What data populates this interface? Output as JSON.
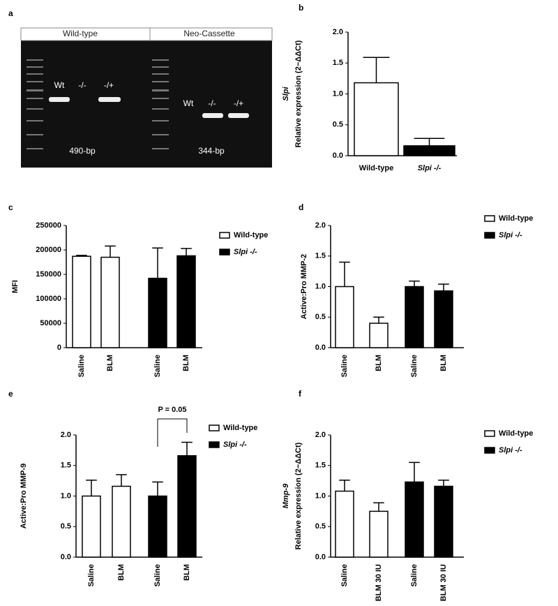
{
  "gel": {
    "panel": "a",
    "headers": [
      "Wild-type",
      "Neo-Cassette"
    ],
    "lanes": [
      [
        "Wt",
        "-/-",
        "-/+"
      ],
      [
        "Wt",
        "-/-",
        "-/+"
      ]
    ],
    "sizes": [
      "490-bp",
      "344-bp"
    ]
  },
  "chart_data": [
    {
      "type": "bar",
      "panel": "b",
      "ylabel_gene": "Slpi",
      "ylabel": "Relative expression (2−ΔΔCt)",
      "categories": [
        "Wild-type",
        "Slpi -/-"
      ],
      "values": [
        1.18,
        0.16
      ],
      "errors": [
        0.41,
        0.12
      ],
      "colors": [
        "#ffffff",
        "#000000"
      ],
      "ylim": [
        0,
        2
      ],
      "yticks": [
        {
          "value": 0,
          "label": "0.0"
        },
        0.5,
        {
          "value": 1,
          "label": "1.0"
        },
        1.5,
        {
          "value": 2,
          "label": "2.0"
        }
      ]
    },
    {
      "type": "grouped_bar",
      "panel": "c",
      "ylabel": "MFI",
      "categories": [
        "Saline",
        "BLM"
      ],
      "series": [
        {
          "name": "Wild-type",
          "color": "#ffffff",
          "values": [
            187000,
            185000
          ],
          "errors": [
            2000,
            23000
          ]
        },
        {
          "name": "Slpi -/-",
          "color": "#000000",
          "values": [
            142000,
            188000
          ],
          "errors": [
            62000,
            15000
          ]
        }
      ],
      "ylim": [
        0,
        250000
      ],
      "yticks": [
        0,
        50000,
        100000,
        150000,
        200000,
        250000
      ]
    },
    {
      "type": "grouped_bar",
      "panel": "d",
      "ylabel": "Active:Pro MMP-2",
      "categories": [
        "Saline",
        "BLM"
      ],
      "series": [
        {
          "name": "Wild-type",
          "color": "#ffffff",
          "values": [
            1.0,
            0.4
          ],
          "errors": [
            0.4,
            0.1
          ]
        },
        {
          "name": "Slpi -/-",
          "color": "#000000",
          "values": [
            1.0,
            0.93
          ],
          "errors": [
            0.09,
            0.11
          ]
        }
      ],
      "ylim": [
        0,
        2
      ],
      "yticks": [
        {
          "value": 0,
          "label": "0.0"
        },
        0.5,
        {
          "value": 1,
          "label": "1.0"
        },
        1.5,
        {
          "value": 2,
          "label": "2.0"
        }
      ]
    },
    {
      "type": "grouped_bar",
      "panel": "e",
      "ylabel": "Active:Pro MMP-9",
      "categories": [
        "Saline",
        "BLM"
      ],
      "series": [
        {
          "name": "Wild-type",
          "color": "#ffffff",
          "values": [
            1.0,
            1.16
          ],
          "errors": [
            0.26,
            0.19
          ]
        },
        {
          "name": "Slpi -/-",
          "color": "#000000",
          "values": [
            1.0,
            1.66
          ],
          "errors": [
            0.23,
            0.22
          ]
        }
      ],
      "annotation": "P = 0.05",
      "ylim": [
        0,
        2
      ],
      "yticks": [
        {
          "value": 0,
          "label": "0.0"
        },
        0.5,
        {
          "value": 1,
          "label": "1.0"
        },
        1.5,
        {
          "value": 2,
          "label": "2.0"
        }
      ]
    },
    {
      "type": "grouped_bar",
      "panel": "f",
      "ylabel_gene": "Mmp-9",
      "ylabel": "Relative expression (2−ΔΔCt)",
      "categories": [
        "Saline",
        "BLM 30 IU"
      ],
      "series": [
        {
          "name": "Wild-type",
          "color": "#ffffff",
          "values": [
            1.08,
            0.75
          ],
          "errors": [
            0.18,
            0.14
          ]
        },
        {
          "name": "Slpi -/-",
          "color": "#000000",
          "values": [
            1.23,
            1.16
          ],
          "errors": [
            0.32,
            0.1
          ]
        }
      ],
      "ylim": [
        0,
        2
      ],
      "yticks": [
        {
          "value": 0,
          "label": "0.0"
        },
        0.5,
        {
          "value": 1,
          "label": "1.0"
        },
        1.5,
        {
          "value": 2,
          "label": "2.0"
        }
      ]
    }
  ]
}
